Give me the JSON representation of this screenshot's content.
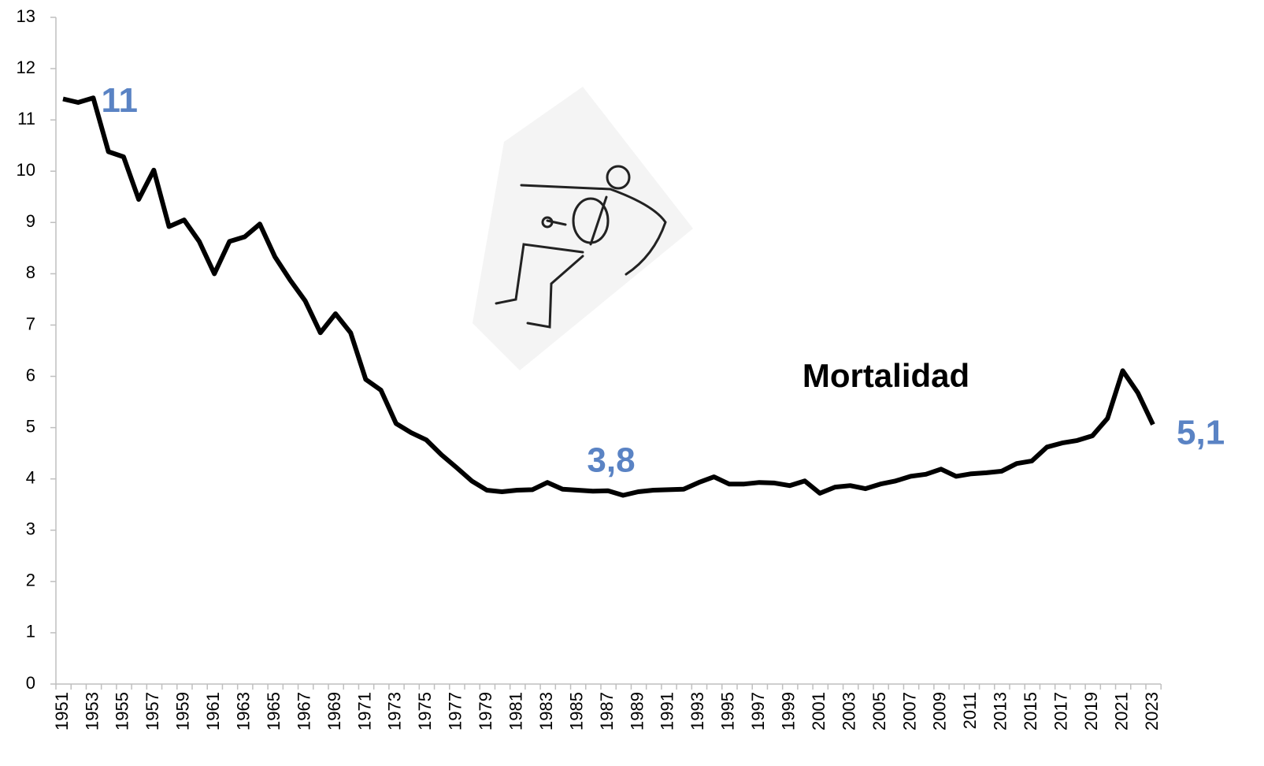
{
  "chart_data": {
    "type": "line",
    "categories": [
      "1951",
      null,
      "1953",
      null,
      "1955",
      null,
      "1957",
      null,
      "1959",
      null,
      "1961",
      null,
      "1963",
      null,
      "1965",
      null,
      "1967",
      null,
      "1969",
      null,
      "1971",
      null,
      "1973",
      null,
      "1975",
      null,
      "1977",
      null,
      "1979",
      null,
      "1981",
      null,
      "1983",
      null,
      "1985",
      null,
      "1987",
      null,
      "1989",
      null,
      "1991",
      null,
      "1993",
      null,
      "1995",
      null,
      "1997",
      null,
      "1999",
      null,
      "2001",
      null,
      "2003",
      null,
      "2005",
      null,
      "2007",
      null,
      "2009",
      null,
      "2011",
      null,
      "2013",
      null,
      "2015",
      null,
      "2017",
      null,
      "2019",
      null,
      "2021",
      null,
      "2023"
    ],
    "series": [
      {
        "name": "Mortalidad",
        "color": "#000000",
        "values": [
          11.41,
          11.34,
          11.43,
          10.38,
          10.28,
          9.45,
          10.02,
          8.92,
          9.05,
          8.63,
          8.0,
          8.63,
          8.72,
          8.97,
          8.33,
          7.88,
          7.47,
          6.85,
          7.22,
          6.85,
          5.94,
          5.73,
          5.08,
          4.9,
          4.76,
          4.47,
          4.22,
          3.96,
          3.78,
          3.75,
          3.78,
          3.79,
          3.93,
          3.8,
          3.78,
          3.76,
          3.77,
          3.68,
          3.75,
          3.78,
          3.79,
          3.8,
          3.93,
          4.04,
          3.9,
          3.9,
          3.93,
          3.92,
          3.87,
          3.96,
          3.72,
          3.84,
          3.87,
          3.81,
          3.9,
          3.96,
          4.05,
          4.09,
          4.19,
          4.05,
          4.1,
          4.12,
          4.15,
          4.3,
          4.35,
          4.62,
          4.7,
          4.75,
          4.84,
          5.18,
          6.11,
          5.68,
          5.06
        ],
        "value_labels": [
          null,
          null,
          "11",
          null,
          null,
          null,
          null,
          null,
          null,
          null,
          null,
          null,
          null,
          null,
          null,
          null,
          null,
          null,
          null,
          null,
          null,
          null,
          null,
          null,
          null,
          null,
          null,
          null,
          null,
          null,
          null,
          null,
          null,
          null,
          null,
          null,
          "3,8",
          null,
          null,
          null,
          null,
          null,
          null,
          null,
          null,
          null,
          null,
          null,
          null,
          null,
          null,
          null,
          null,
          null,
          null,
          null,
          null,
          null,
          null,
          null,
          null,
          null,
          null,
          null,
          null,
          null,
          null,
          null,
          null,
          null,
          null,
          null,
          "5,1"
        ]
      }
    ],
    "ylim": [
      0,
      13
    ],
    "yticks": [
      0,
      1,
      2,
      3,
      4,
      5,
      6,
      7,
      8,
      9,
      10,
      11,
      12,
      13
    ],
    "grid": false
  }
}
